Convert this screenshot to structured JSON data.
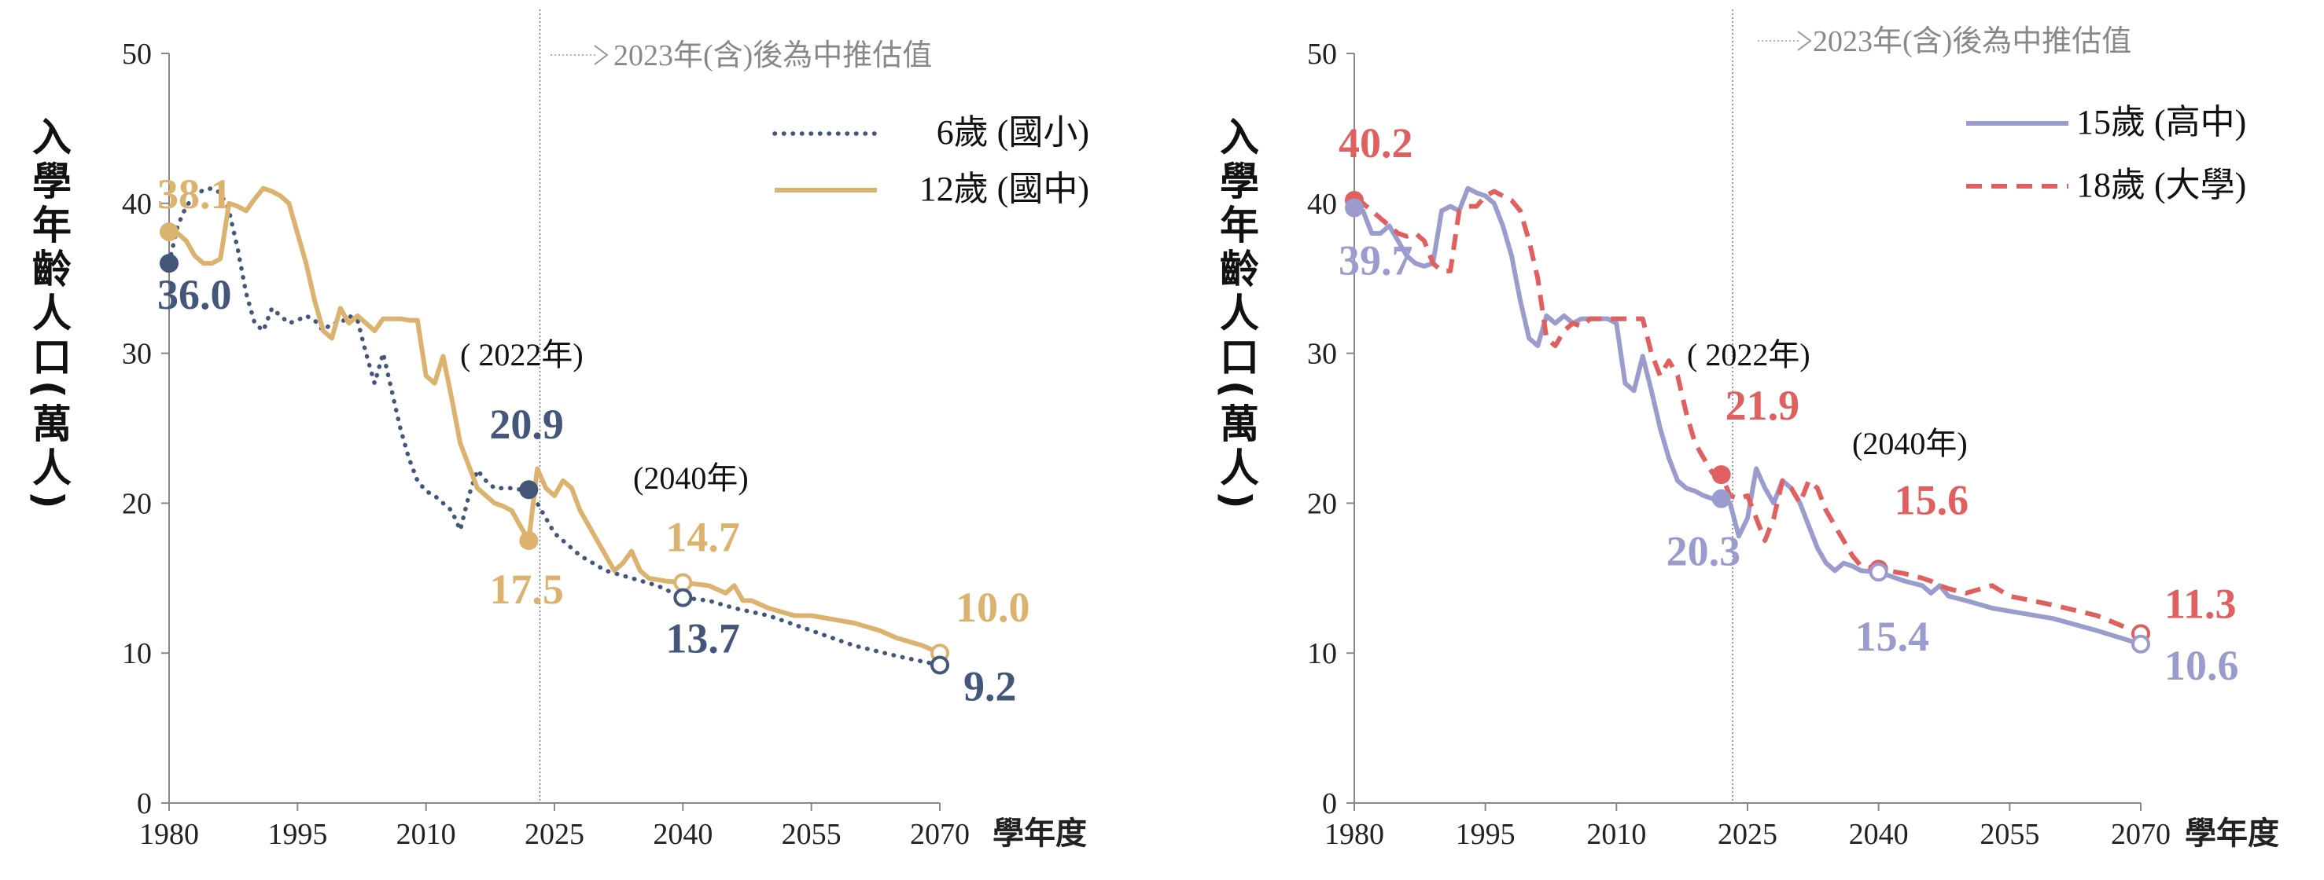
{
  "chart_data": [
    {
      "type": "line",
      "xlabel": "學年度",
      "ylabel": "入學年齡人口(萬人)",
      "xlim": [
        1980,
        2070
      ],
      "ylim": [
        0,
        50
      ],
      "xticks": [
        1980,
        1995,
        2010,
        2025,
        2040,
        2055,
        2070
      ],
      "yticks": [
        0,
        10,
        20,
        30,
        40,
        50
      ],
      "projection_note": "2023年(含)後為中推估值",
      "projection_start": 2023,
      "legend_position": "top-right",
      "series": [
        {
          "name": "6歲 (國小)",
          "color": "#44577a",
          "style": "dotted",
          "x": [
            1980,
            1981,
            1982,
            1983,
            1984,
            1985,
            1986,
            1987,
            1988,
            1989,
            1990,
            1991,
            1992,
            1993,
            1994,
            1995,
            1996,
            1997,
            1998,
            1999,
            2000,
            2001,
            2002,
            2003,
            2004,
            2005,
            2006,
            2007,
            2008,
            2009,
            2010,
            2011,
            2012,
            2013,
            2014,
            2015,
            2016,
            2017,
            2018,
            2019,
            2020,
            2021,
            2022,
            2023,
            2025,
            2028,
            2031,
            2034,
            2037,
            2040,
            2043,
            2046,
            2050,
            2055,
            2060,
            2065,
            2070
          ],
          "values": [
            36.0,
            38.5,
            39.8,
            40.5,
            40.9,
            41.0,
            40.7,
            39.5,
            37.0,
            34.0,
            32.0,
            31.5,
            33.0,
            32.5,
            32.0,
            32.2,
            32.5,
            32.2,
            31.5,
            32.0,
            32.0,
            32.5,
            32.2,
            30.0,
            28.0,
            30.0,
            27.5,
            25.0,
            23.0,
            21.5,
            20.8,
            20.5,
            20.0,
            19.5,
            18.2,
            20.5,
            22.2,
            21.5,
            21.0,
            21.0,
            21.0,
            20.9,
            20.9,
            20.0,
            18.0,
            16.5,
            15.5,
            15.0,
            14.5,
            13.7,
            13.5,
            13.0,
            12.5,
            11.5,
            10.5,
            9.8,
            9.2
          ]
        },
        {
          "name": "12歲 (國中)",
          "color": "#dcb36e",
          "style": "solid",
          "x": [
            1980,
            1981,
            1982,
            1983,
            1984,
            1985,
            1986,
            1987,
            1988,
            1989,
            1990,
            1991,
            1992,
            1993,
            1994,
            1995,
            1996,
            1997,
            1998,
            1999,
            2000,
            2001,
            2002,
            2003,
            2004,
            2005,
            2006,
            2007,
            2008,
            2009,
            2010,
            2011,
            2012,
            2013,
            2014,
            2015,
            2016,
            2017,
            2018,
            2019,
            2020,
            2021,
            2022,
            2023,
            2024,
            2025,
            2026,
            2027,
            2028,
            2029,
            2030,
            2031,
            2032,
            2033,
            2034,
            2035,
            2036,
            2037,
            2038,
            2040,
            2043,
            2045,
            2046,
            2047,
            2048,
            2050,
            2053,
            2055,
            2058,
            2060,
            2063,
            2065,
            2068,
            2070
          ],
          "values": [
            38.1,
            38.0,
            37.5,
            36.5,
            36.0,
            36.0,
            36.3,
            40.0,
            39.8,
            39.5,
            40.3,
            41.0,
            40.8,
            40.5,
            40.0,
            38.0,
            36.0,
            33.5,
            31.5,
            31.0,
            33.0,
            32.0,
            32.5,
            32.0,
            31.5,
            32.3,
            32.3,
            32.3,
            32.2,
            32.2,
            28.5,
            28.0,
            29.8,
            27.0,
            24.0,
            22.5,
            21.0,
            20.5,
            20.0,
            19.8,
            19.5,
            18.5,
            17.5,
            22.3,
            21.0,
            20.5,
            21.5,
            21.0,
            19.5,
            18.5,
            17.5,
            16.5,
            15.5,
            16.0,
            16.8,
            15.5,
            15.0,
            14.9,
            14.8,
            14.7,
            14.5,
            14.0,
            14.5,
            13.5,
            13.5,
            13.0,
            12.5,
            12.5,
            12.2,
            12.0,
            11.5,
            11.0,
            10.5,
            10.0
          ]
        }
      ],
      "point_labels": [
        {
          "series": 0,
          "x": 1980,
          "y": 36.0,
          "text": "36.0",
          "marker": "filled"
        },
        {
          "series": 1,
          "x": 1980,
          "y": 38.1,
          "text": "38.1",
          "marker": "filled"
        },
        {
          "series": 0,
          "x": 2022,
          "y": 20.9,
          "text": "20.9",
          "marker": "filled"
        },
        {
          "series": 1,
          "x": 2022,
          "y": 17.5,
          "text": "17.5",
          "marker": "filled"
        },
        {
          "series": 1,
          "x": 2040,
          "y": 14.7,
          "text": "14.7",
          "marker": "open"
        },
        {
          "series": 0,
          "x": 2040,
          "y": 13.7,
          "text": "13.7",
          "marker": "open"
        },
        {
          "series": 1,
          "x": 2070,
          "y": 10.0,
          "text": "10.0",
          "marker": "open"
        },
        {
          "series": 0,
          "x": 2070,
          "y": 9.2,
          "text": "9.2",
          "marker": "open"
        }
      ],
      "annotations": [
        "( 2022年)",
        "(2040年)"
      ]
    },
    {
      "type": "line",
      "xlabel": "學年度",
      "ylabel": "入學年齡人口(萬人)",
      "xlim": [
        1980,
        2070
      ],
      "ylim": [
        0,
        50
      ],
      "xticks": [
        1980,
        1995,
        2010,
        2025,
        2040,
        2055,
        2070
      ],
      "yticks": [
        0,
        10,
        20,
        30,
        40,
        50
      ],
      "projection_note": "2023年(含)後為中推估值",
      "projection_start": 2023,
      "legend_position": "top-right",
      "series": [
        {
          "name": "15歲 (高中)",
          "color": "#9b9cce",
          "style": "solid",
          "x": [
            1980,
            1981,
            1982,
            1983,
            1984,
            1985,
            1986,
            1987,
            1988,
            1989,
            1990,
            1991,
            1992,
            1993,
            1994,
            1995,
            1996,
            1997,
            1998,
            1999,
            2000,
            2001,
            2002,
            2003,
            2004,
            2005,
            2006,
            2007,
            2008,
            2009,
            2010,
            2011,
            2012,
            2013,
            2014,
            2015,
            2016,
            2017,
            2018,
            2019,
            2020,
            2021,
            2022,
            2023,
            2024,
            2025,
            2026,
            2027,
            2028,
            2029,
            2030,
            2031,
            2032,
            2033,
            2034,
            2035,
            2036,
            2037,
            2038,
            2040,
            2043,
            2045,
            2046,
            2047,
            2048,
            2050,
            2053,
            2055,
            2060,
            2065,
            2070
          ],
          "values": [
            39.7,
            39.5,
            38.0,
            38.0,
            38.5,
            37.5,
            36.5,
            36.0,
            35.8,
            36.0,
            39.5,
            39.8,
            39.5,
            41.0,
            40.7,
            40.5,
            40.0,
            38.5,
            36.5,
            33.5,
            31.0,
            30.5,
            32.5,
            32.0,
            32.5,
            32.0,
            32.3,
            32.3,
            32.3,
            32.3,
            32.0,
            28.0,
            27.5,
            29.8,
            27.5,
            25.0,
            23.0,
            21.5,
            21.0,
            20.8,
            20.5,
            20.3,
            20.3,
            20.0,
            17.8,
            19.0,
            22.3,
            21.0,
            20.0,
            21.5,
            21.0,
            20.0,
            18.5,
            17.0,
            16.0,
            15.5,
            16.0,
            15.8,
            15.5,
            15.4,
            14.8,
            14.5,
            14.0,
            14.5,
            13.8,
            13.5,
            13.0,
            12.8,
            12.3,
            11.5,
            10.6
          ]
        },
        {
          "name": "18歲 (大學)",
          "color": "#e06060",
          "style": "dashed",
          "x": [
            1980,
            1981,
            1982,
            1983,
            1984,
            1985,
            1986,
            1987,
            1988,
            1989,
            1990,
            1991,
            1992,
            1993,
            1994,
            1995,
            1996,
            1997,
            1998,
            1999,
            2000,
            2001,
            2002,
            2003,
            2004,
            2005,
            2006,
            2007,
            2008,
            2009,
            2010,
            2011,
            2012,
            2013,
            2014,
            2015,
            2016,
            2017,
            2018,
            2019,
            2020,
            2021,
            2022,
            2023,
            2024,
            2025,
            2026,
            2027,
            2028,
            2029,
            2030,
            2031,
            2032,
            2033,
            2034,
            2035,
            2036,
            2037,
            2038,
            2040,
            2043,
            2045,
            2046,
            2047,
            2048,
            2050,
            2053,
            2055,
            2060,
            2065,
            2070
          ],
          "values": [
            40.2,
            40.0,
            39.5,
            39.0,
            38.5,
            38.0,
            37.8,
            38.0,
            37.5,
            36.0,
            35.5,
            35.5,
            39.5,
            39.8,
            39.8,
            40.5,
            40.8,
            40.5,
            40.2,
            39.5,
            37.5,
            35.0,
            31.0,
            30.5,
            31.5,
            32.0,
            31.8,
            32.3,
            32.3,
            32.3,
            32.3,
            32.3,
            32.3,
            32.3,
            30.0,
            28.5,
            29.5,
            28.5,
            26.0,
            24.0,
            23.0,
            22.0,
            21.9,
            20.5,
            20.3,
            20.5,
            19.0,
            17.5,
            19.0,
            21.5,
            21.0,
            20.0,
            21.5,
            21.0,
            19.5,
            18.5,
            17.5,
            16.5,
            15.8,
            15.6,
            15.3,
            15.0,
            14.8,
            14.5,
            14.3,
            14.0,
            14.5,
            13.8,
            13.2,
            12.5,
            11.3
          ]
        }
      ],
      "point_labels": [
        {
          "series": 1,
          "x": 1980,
          "y": 40.2,
          "text": "40.2",
          "marker": "filled"
        },
        {
          "series": 0,
          "x": 1980,
          "y": 39.7,
          "text": "39.7",
          "marker": "filled"
        },
        {
          "series": 1,
          "x": 2022,
          "y": 21.9,
          "text": "21.9",
          "marker": "filled"
        },
        {
          "series": 0,
          "x": 2022,
          "y": 20.3,
          "text": "20.3",
          "marker": "filled"
        },
        {
          "series": 1,
          "x": 2040,
          "y": 15.6,
          "text": "15.6",
          "marker": "open"
        },
        {
          "series": 0,
          "x": 2040,
          "y": 15.4,
          "text": "15.4",
          "marker": "open"
        },
        {
          "series": 1,
          "x": 2070,
          "y": 11.3,
          "text": "11.3",
          "marker": "open"
        },
        {
          "series": 0,
          "x": 2070,
          "y": 10.6,
          "text": "10.6",
          "marker": "open"
        }
      ],
      "annotations": [
        "( 2022年)",
        "(2040年)"
      ]
    }
  ]
}
